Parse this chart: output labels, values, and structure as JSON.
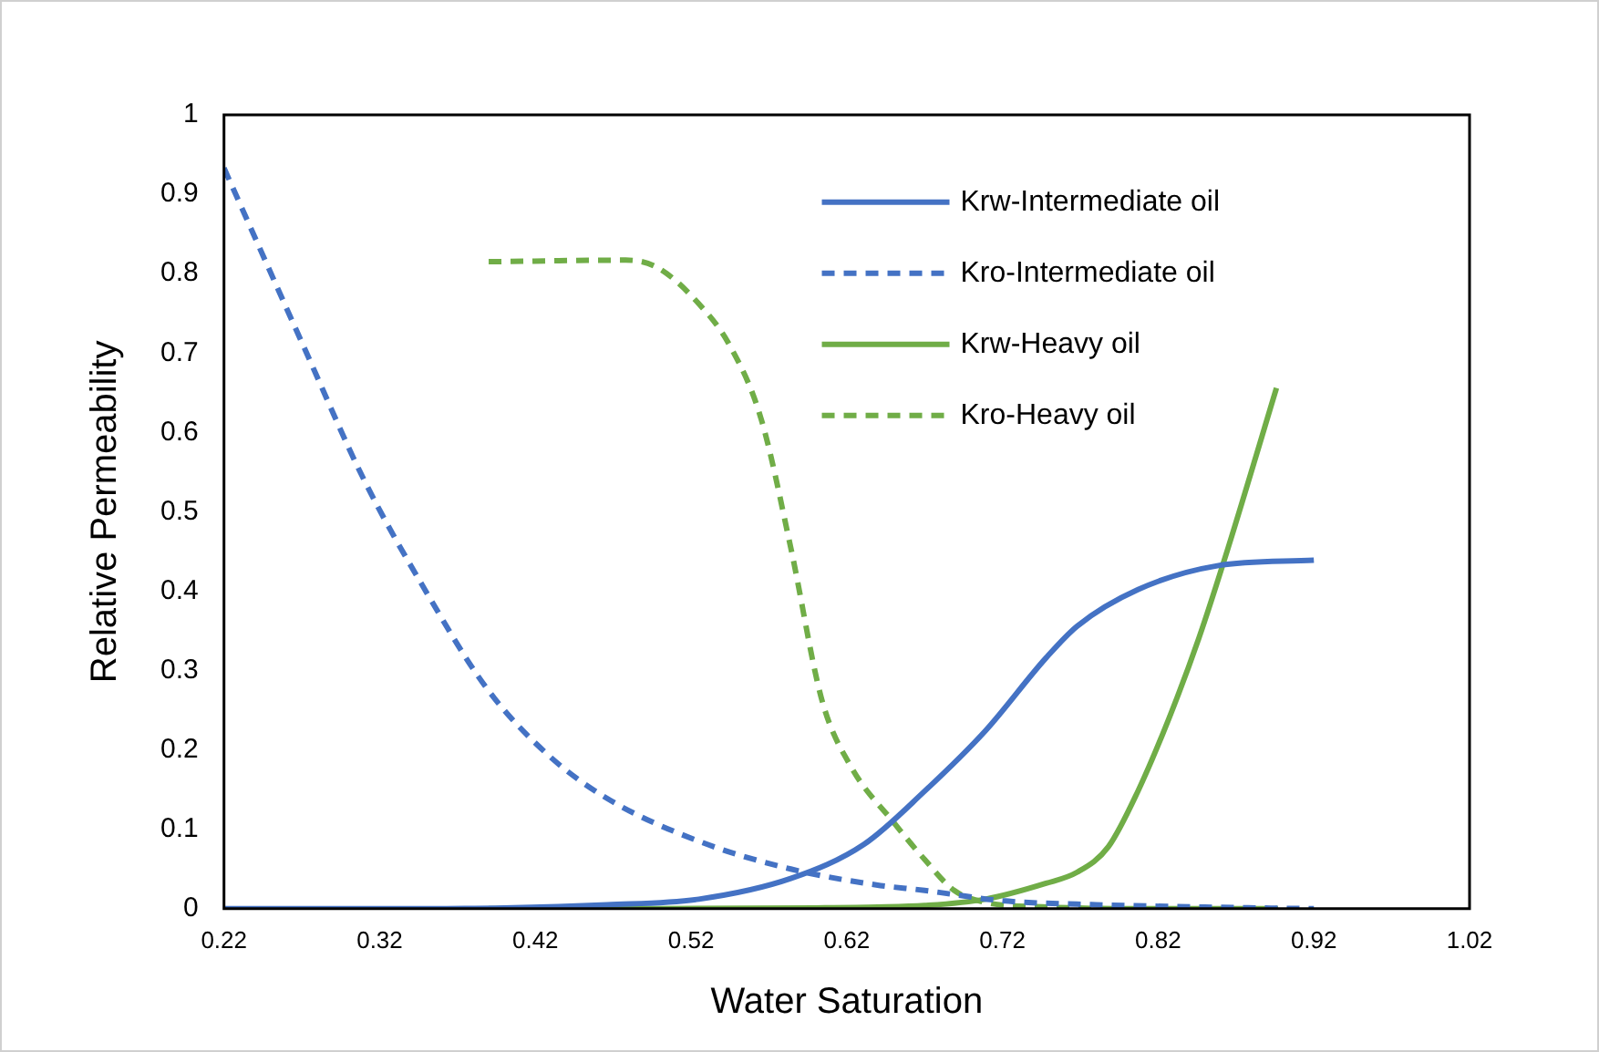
{
  "chart_data": {
    "type": "line",
    "xlabel": "Water Saturation",
    "ylabel": "Relative Permeability",
    "xlim": [
      0.22,
      1.02
    ],
    "xticks": [
      0.22,
      0.32,
      0.42,
      0.52,
      0.62,
      0.72,
      0.82,
      0.92,
      1.02
    ],
    "ylim": [
      0,
      1
    ],
    "yticks": [
      0,
      0.1,
      0.2,
      0.3,
      0.4,
      0.5,
      0.6,
      0.7,
      0.8,
      0.9,
      1
    ],
    "grid": false,
    "legend": "top right",
    "marker": "none",
    "series": [
      {
        "name": "Krw-Intermediate oil",
        "color": "#4472c4",
        "line_style": "solid",
        "x": [
          0.22,
          0.32,
          0.4,
          0.466,
          0.525,
          0.584,
          0.631,
          0.67,
          0.709,
          0.748,
          0.768,
          0.807,
          0.858,
          0.92
        ],
        "values": [
          0,
          0,
          0.001,
          0.005,
          0.012,
          0.038,
          0.081,
          0.148,
          0.224,
          0.316,
          0.356,
          0.402,
          0.432,
          0.439
        ]
      },
      {
        "name": "Kro-Intermediate oil",
        "color": "#4472c4",
        "line_style": "dashed",
        "x": [
          0.22,
          0.271,
          0.31,
          0.349,
          0.389,
          0.428,
          0.466,
          0.525,
          0.584,
          0.639,
          0.67,
          0.72,
          0.78,
          0.85,
          0.92
        ],
        "values": [
          0.933,
          0.709,
          0.54,
          0.402,
          0.277,
          0.194,
          0.139,
          0.085,
          0.05,
          0.03,
          0.023,
          0.01,
          0.005,
          0.002,
          0
        ]
      },
      {
        "name": "Krw-Heavy oil",
        "color": "#70ad47",
        "line_style": "solid",
        "x": [
          0.39,
          0.5,
          0.6,
          0.64,
          0.67,
          0.709,
          0.748,
          0.768,
          0.788,
          0.807,
          0.827,
          0.846,
          0.865,
          0.896
        ],
        "values": [
          0,
          0,
          0.001,
          0.002,
          0.004,
          0.012,
          0.032,
          0.046,
          0.078,
          0.148,
          0.24,
          0.34,
          0.455,
          0.656
        ]
      },
      {
        "name": "Kro-Heavy oil",
        "color": "#70ad47",
        "line_style": "dashed",
        "x": [
          0.39,
          0.478,
          0.498,
          0.525,
          0.545,
          0.565,
          0.584,
          0.604,
          0.623,
          0.65,
          0.67,
          0.689,
          0.709,
          0.75,
          0.82,
          0.897
        ],
        "values": [
          0.815,
          0.817,
          0.808,
          0.762,
          0.709,
          0.617,
          0.455,
          0.263,
          0.178,
          0.109,
          0.062,
          0.023,
          0.008,
          0.002,
          0,
          0
        ]
      }
    ]
  }
}
